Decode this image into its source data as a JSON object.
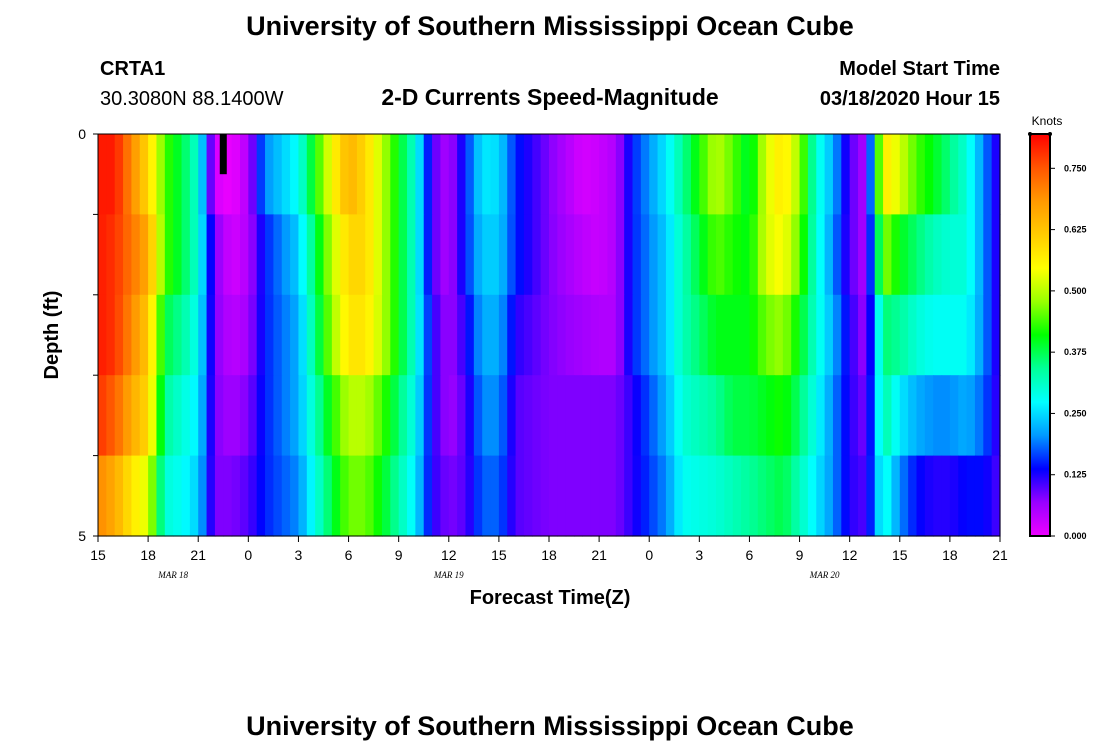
{
  "header": {
    "title": "University of Southern Mississippi Ocean Cube",
    "station": "CRTA1",
    "coords": "30.3080N 88.1400W",
    "subtitle": "2-D Currents Speed-Magnitude",
    "model_label": "Model Start Time",
    "model_time": "03/18/2020 Hour 15",
    "footer_title": "University of Southern Mississippi Ocean Cube"
  },
  "chart_data": {
    "type": "heatmap",
    "title": "2-D Currents Speed-Magnitude",
    "xlabel": "Forecast Time(Z)",
    "ylabel": "Depth (ft)",
    "x_ticks": [
      "15",
      "18",
      "21",
      "0",
      "3",
      "6",
      "9",
      "12",
      "15",
      "18",
      "21",
      "0",
      "3",
      "6",
      "9",
      "12",
      "15",
      "18",
      "21"
    ],
    "y_ticks": [
      "0",
      "5"
    ],
    "y_range": [
      0,
      5
    ],
    "x_range_hours": [
      0,
      54
    ],
    "date_labels": [
      {
        "text": "MAR 18",
        "hour": 4.5
      },
      {
        "text": "MAR 19",
        "hour": 21
      },
      {
        "text": "MAR 20",
        "hour": 43.5
      }
    ],
    "colorbar": {
      "unit": "Knots",
      "ticks": [
        "0.000",
        "0.125",
        "0.250",
        "0.375",
        "0.500",
        "0.625",
        "0.750"
      ],
      "vmin": 0,
      "vmax": 0.82,
      "colors": [
        "#ee00ff",
        "#9900ff",
        "#0000ff",
        "#0099ff",
        "#00ffff",
        "#00ff99",
        "#00ff00",
        "#99ff00",
        "#ffff00",
        "#ffcc00",
        "#ff9900",
        "#ff5500",
        "#ff0000"
      ]
    },
    "missing_marker": {
      "hour": 7.5,
      "depth_from": 0,
      "depth_to": 0.5
    },
    "depth_bands": 5,
    "hour_keyframes": [
      0,
      1,
      2,
      3,
      4,
      5,
      6,
      7,
      8,
      9,
      10,
      12,
      14,
      15,
      16,
      17,
      19,
      20,
      21,
      22,
      23,
      24,
      25,
      27,
      29,
      30,
      31,
      32,
      34,
      35,
      37,
      38,
      39,
      40,
      41,
      42,
      43,
      44,
      45,
      46,
      47,
      48,
      49,
      50,
      51,
      52,
      53,
      54
    ],
    "speed_rows": [
      [
        0.8,
        0.8,
        0.7,
        0.6,
        0.44,
        0.38,
        0.3,
        0.02,
        0.0,
        0.05,
        0.2,
        0.28,
        0.55,
        0.65,
        0.6,
        0.5,
        0.3,
        0.1,
        0.05,
        0.15,
        0.26,
        0.25,
        0.15,
        0.08,
        0.02,
        0.03,
        0.05,
        0.15,
        0.26,
        0.34,
        0.5,
        0.45,
        0.38,
        0.52,
        0.58,
        0.48,
        0.3,
        0.22,
        0.1,
        0.05,
        0.58,
        0.52,
        0.44,
        0.4,
        0.35,
        0.3,
        0.2,
        0.1
      ],
      [
        0.8,
        0.78,
        0.72,
        0.66,
        0.44,
        0.38,
        0.3,
        0.08,
        0.02,
        0.05,
        0.15,
        0.24,
        0.5,
        0.6,
        0.6,
        0.5,
        0.3,
        0.1,
        0.05,
        0.15,
        0.24,
        0.24,
        0.15,
        0.08,
        0.04,
        0.03,
        0.05,
        0.15,
        0.24,
        0.32,
        0.45,
        0.42,
        0.4,
        0.52,
        0.55,
        0.45,
        0.3,
        0.2,
        0.1,
        0.05,
        0.48,
        0.4,
        0.36,
        0.32,
        0.3,
        0.3,
        0.2,
        0.1
      ],
      [
        0.8,
        0.78,
        0.7,
        0.62,
        0.38,
        0.34,
        0.28,
        0.08,
        0.04,
        0.06,
        0.15,
        0.22,
        0.48,
        0.58,
        0.58,
        0.5,
        0.3,
        0.12,
        0.06,
        0.12,
        0.22,
        0.22,
        0.12,
        0.08,
        0.06,
        0.05,
        0.05,
        0.15,
        0.24,
        0.32,
        0.4,
        0.4,
        0.4,
        0.46,
        0.48,
        0.4,
        0.3,
        0.22,
        0.12,
        0.06,
        0.36,
        0.34,
        0.3,
        0.28,
        0.28,
        0.28,
        0.2,
        0.1
      ],
      [
        0.78,
        0.74,
        0.66,
        0.6,
        0.34,
        0.3,
        0.26,
        0.08,
        0.06,
        0.08,
        0.15,
        0.22,
        0.42,
        0.5,
        0.5,
        0.44,
        0.28,
        0.12,
        0.06,
        0.1,
        0.2,
        0.2,
        0.1,
        0.08,
        0.08,
        0.08,
        0.08,
        0.12,
        0.22,
        0.3,
        0.34,
        0.38,
        0.38,
        0.4,
        0.42,
        0.36,
        0.28,
        0.2,
        0.12,
        0.08,
        0.34,
        0.26,
        0.22,
        0.2,
        0.2,
        0.22,
        0.18,
        0.1
      ],
      [
        0.7,
        0.66,
        0.58,
        0.52,
        0.3,
        0.28,
        0.24,
        0.08,
        0.08,
        0.1,
        0.15,
        0.2,
        0.38,
        0.46,
        0.46,
        0.4,
        0.26,
        0.12,
        0.08,
        0.1,
        0.18,
        0.18,
        0.1,
        0.08,
        0.08,
        0.08,
        0.08,
        0.12,
        0.2,
        0.28,
        0.3,
        0.32,
        0.34,
        0.36,
        0.38,
        0.32,
        0.26,
        0.2,
        0.12,
        0.1,
        0.3,
        0.2,
        0.14,
        0.12,
        0.12,
        0.14,
        0.14,
        0.1
      ]
    ]
  }
}
